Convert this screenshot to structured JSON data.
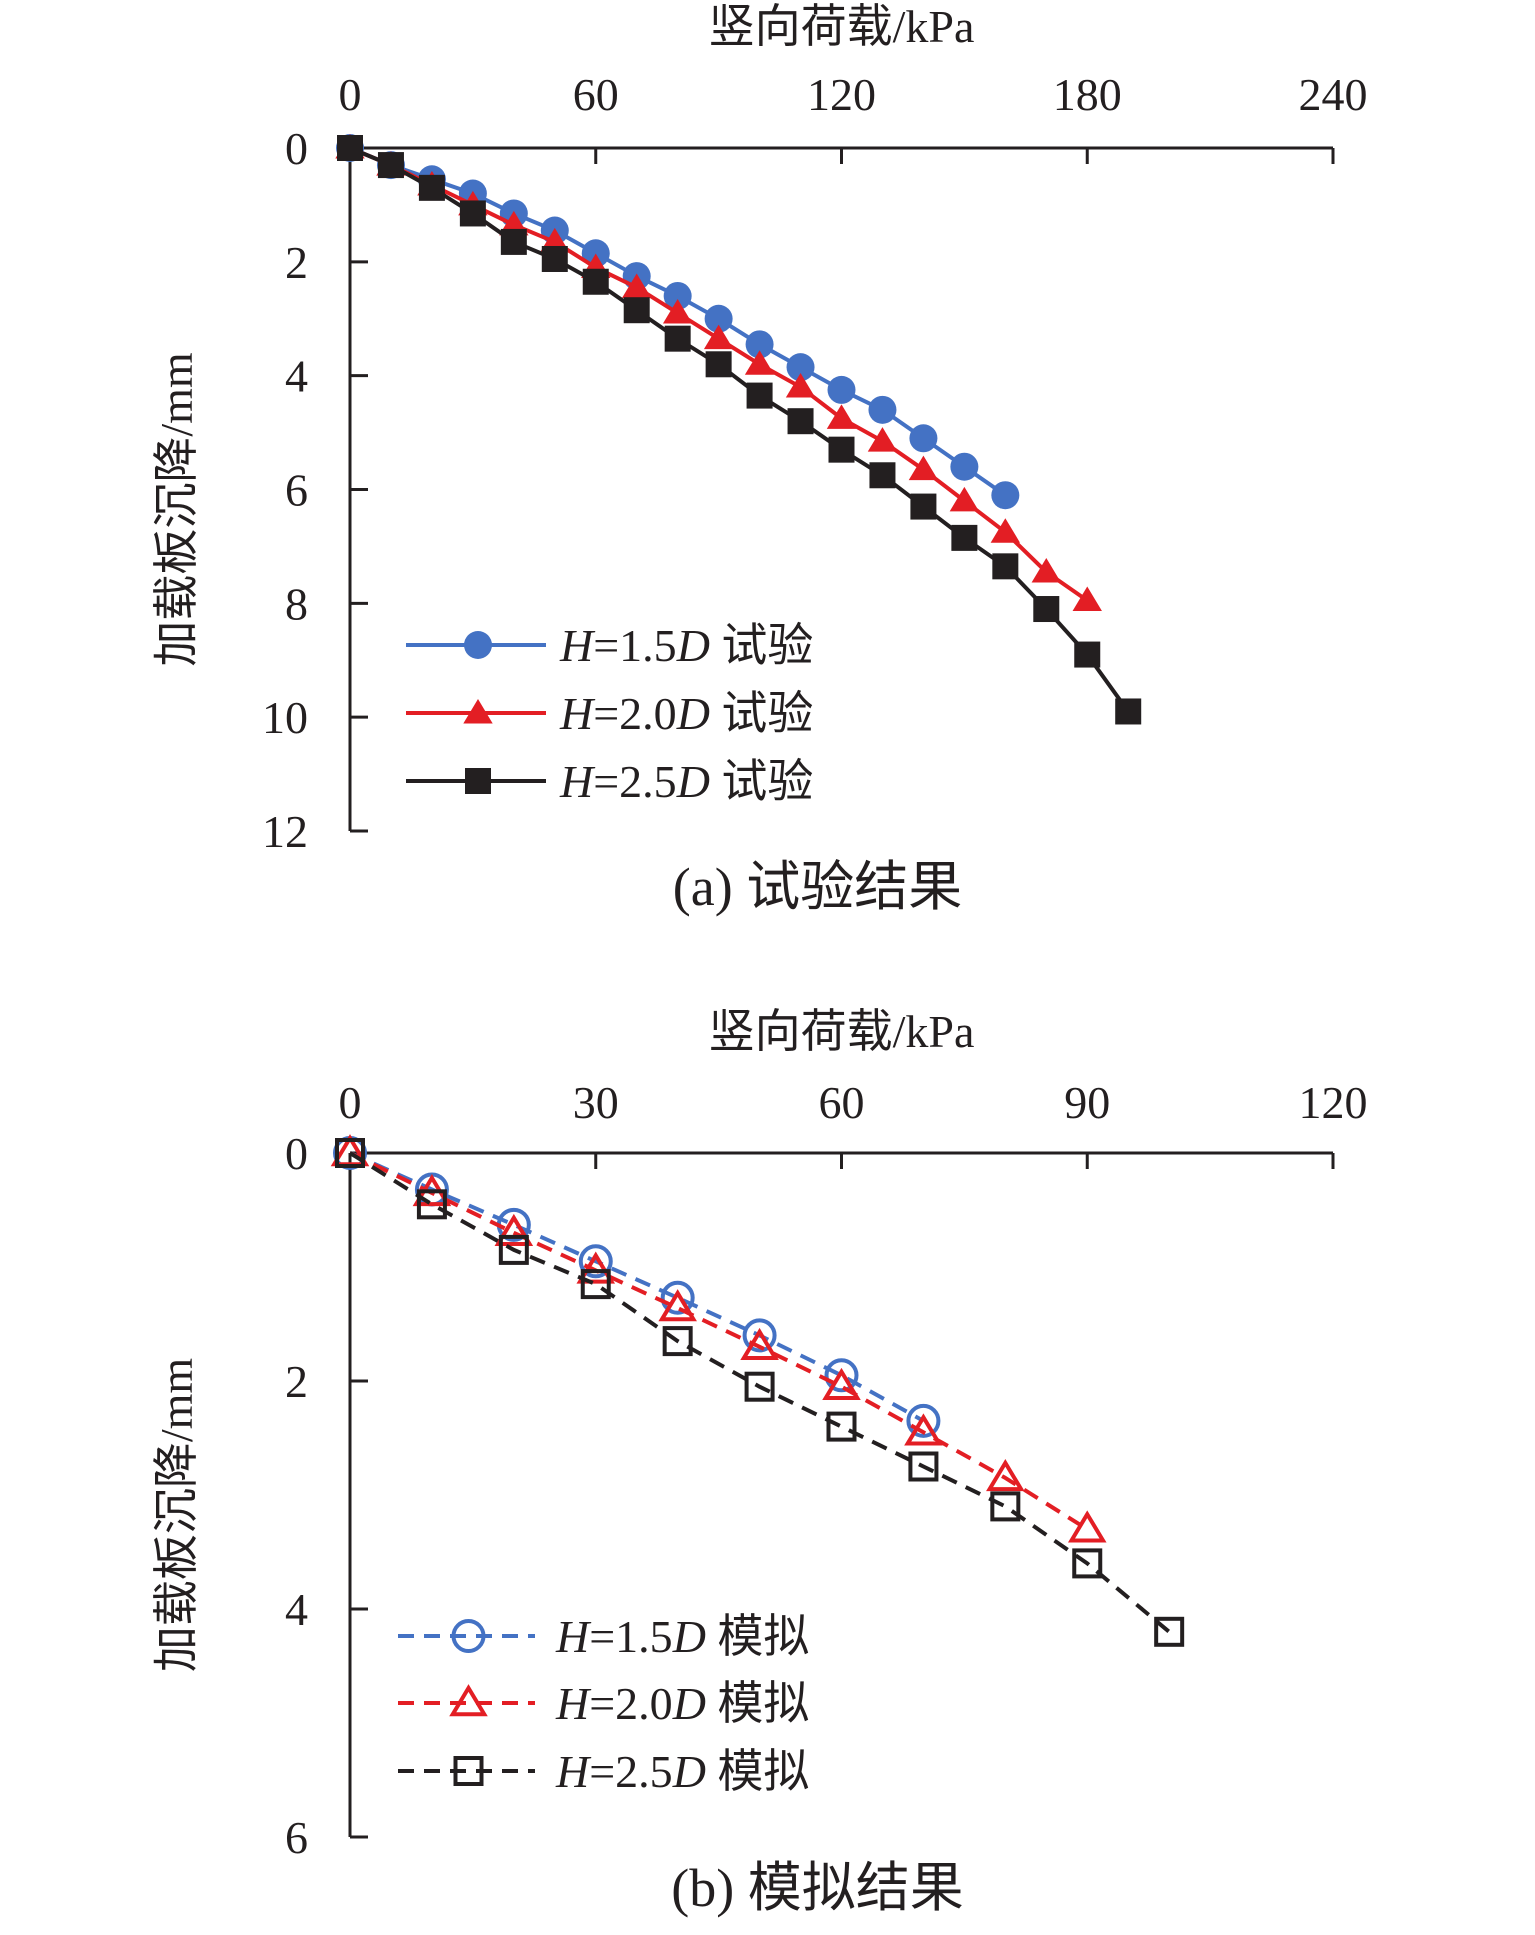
{
  "chart_data": [
    {
      "type": "line",
      "caption": "(a) 试验结果",
      "xlabel": "竖向荷载/kPa",
      "ylabel": "加载板沉降/mm",
      "xlim": [
        0,
        240
      ],
      "ylim": [
        0,
        12
      ],
      "x_ticks": [
        "0",
        "60",
        "120",
        "180",
        "240"
      ],
      "y_ticks": [
        "0",
        "2",
        "4",
        "6",
        "8",
        "10",
        "12"
      ],
      "x_axis_position": "top",
      "y_inverted": true,
      "grid": false,
      "legend_position": "bottom-left",
      "series": [
        {
          "name": "H=1.5D 试验",
          "legend": {
            "italic_h": "H",
            "middle": "=1.5",
            "italic_d": "D",
            "suffix": " 试验"
          },
          "color": "#4472c4",
          "marker": "filled-circle",
          "line": "solid",
          "x": [
            0,
            10,
            20,
            30,
            40,
            50,
            60,
            70,
            80,
            90,
            100,
            110,
            120,
            130,
            140,
            150,
            160
          ],
          "y": [
            0,
            0.3,
            0.55,
            0.8,
            1.15,
            1.45,
            1.85,
            2.25,
            2.6,
            3.0,
            3.45,
            3.85,
            4.25,
            4.6,
            5.1,
            5.6,
            6.1
          ]
        },
        {
          "name": "H=2.0D 试验",
          "legend": {
            "italic_h": "H",
            "middle": "=2.0",
            "italic_d": "D",
            "suffix": " 试验"
          },
          "color": "#e31e24",
          "marker": "filled-triangle",
          "line": "solid",
          "x": [
            0,
            10,
            20,
            30,
            40,
            50,
            60,
            70,
            80,
            90,
            100,
            110,
            120,
            130,
            140,
            150,
            160,
            170,
            180
          ],
          "y": [
            0,
            0.3,
            0.65,
            1.0,
            1.35,
            1.65,
            2.1,
            2.45,
            2.9,
            3.35,
            3.8,
            4.2,
            4.75,
            5.15,
            5.65,
            6.2,
            6.75,
            7.45,
            7.95
          ]
        },
        {
          "name": "H=2.5D 试验",
          "legend": {
            "italic_h": "H",
            "middle": "=2.5",
            "italic_d": "D",
            "suffix": " 试验"
          },
          "color": "#231f20",
          "marker": "filled-square",
          "line": "solid",
          "x": [
            0,
            10,
            20,
            30,
            40,
            50,
            60,
            70,
            80,
            90,
            100,
            110,
            120,
            130,
            140,
            150,
            160,
            170,
            180,
            190
          ],
          "y": [
            0,
            0.3,
            0.7,
            1.15,
            1.65,
            1.95,
            2.35,
            2.85,
            3.35,
            3.8,
            4.35,
            4.8,
            5.3,
            5.75,
            6.3,
            6.85,
            7.35,
            8.1,
            8.9,
            9.9
          ]
        }
      ]
    },
    {
      "type": "line",
      "caption": "(b) 模拟结果",
      "xlabel": "竖向荷载/kPa",
      "ylabel": "加载板沉降/mm",
      "xlim": [
        0,
        120
      ],
      "ylim": [
        0,
        6
      ],
      "x_ticks": [
        "0",
        "30",
        "60",
        "90",
        "120"
      ],
      "y_ticks": [
        "0",
        "2",
        "4",
        "6"
      ],
      "x_axis_position": "top",
      "y_inverted": true,
      "grid": false,
      "legend_position": "bottom-left",
      "series": [
        {
          "name": "H=1.5D 模拟",
          "legend": {
            "italic_h": "H",
            "middle": "=1.5",
            "italic_d": "D",
            "suffix": " 模拟"
          },
          "color": "#4472c4",
          "marker": "open-circle",
          "line": "dashed",
          "x": [
            0,
            10,
            20,
            30,
            40,
            50,
            60,
            70
          ],
          "y": [
            0,
            0.32,
            0.63,
            0.95,
            1.27,
            1.6,
            1.95,
            2.35
          ]
        },
        {
          "name": "H=2.0D 模拟",
          "legend": {
            "italic_h": "H",
            "middle": "=2.0",
            "italic_d": "D",
            "suffix": " 模拟"
          },
          "color": "#e31e24",
          "marker": "open-triangle",
          "line": "dashed",
          "x": [
            0,
            10,
            20,
            30,
            40,
            50,
            60,
            70,
            80,
            90
          ],
          "y": [
            0,
            0.35,
            0.7,
            1.03,
            1.36,
            1.7,
            2.05,
            2.45,
            2.85,
            3.3
          ]
        },
        {
          "name": "H=2.5D 模拟",
          "legend": {
            "italic_h": "H",
            "middle": "=2.5",
            "italic_d": "D",
            "suffix": " 模拟"
          },
          "color": "#231f20",
          "marker": "open-square",
          "line": "dashed",
          "x": [
            0,
            10,
            20,
            30,
            40,
            50,
            60,
            70,
            80,
            90,
            100
          ],
          "y": [
            0,
            0.45,
            0.85,
            1.15,
            1.65,
            2.05,
            2.4,
            2.75,
            3.1,
            3.6,
            4.2
          ]
        }
      ]
    }
  ]
}
